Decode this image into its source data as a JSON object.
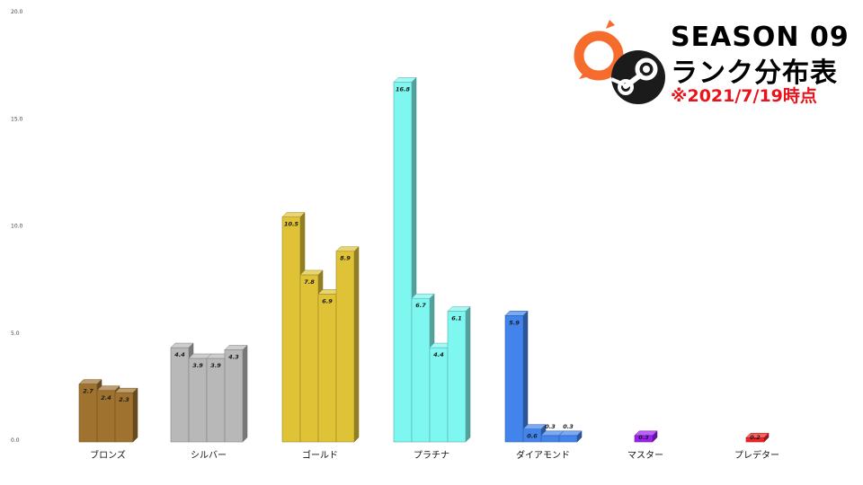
{
  "header": {
    "title_line1": "SEASON 09",
    "title_line2": "ランク分布表",
    "date_note": "※2021/7/19時点"
  },
  "logos": {
    "origin": {
      "icon": "origin-logo-icon",
      "color": "#f56c2d"
    },
    "steam": {
      "icon": "steam-logo-icon",
      "color": "#1b1b1b"
    }
  },
  "chart_data": {
    "type": "bar",
    "title": "",
    "xlabel": "",
    "ylabel": "",
    "ylim": [
      0,
      20
    ],
    "yticks": [
      "0.0",
      "5.0",
      "10.0",
      "15.0",
      "20.0"
    ],
    "grid": false,
    "style": "3d",
    "groups": [
      {
        "name": "ブロンズ",
        "color": "#a0722f",
        "values": [
          2.7,
          2.4,
          2.3
        ],
        "labels": [
          "2.7",
          "2.4",
          "2.3"
        ]
      },
      {
        "name": "シルバー",
        "color": "#b8b8b8",
        "values": [
          4.4,
          3.9,
          3.9,
          4.3
        ],
        "labels": [
          "4.4",
          "3.9",
          "3.9",
          "4.3"
        ]
      },
      {
        "name": "ゴールド",
        "color": "#dfc235",
        "values": [
          10.5,
          7.8,
          6.9,
          8.9
        ],
        "labels": [
          "10.5",
          "7.8",
          "6.9",
          "8.9"
        ]
      },
      {
        "name": "プラチナ",
        "color": "#7ef7f0",
        "values": [
          16.8,
          6.7,
          4.4,
          6.1
        ],
        "labels": [
          "16.8",
          "6.7",
          "4.4",
          "6.1"
        ]
      },
      {
        "name": "ダイアモンド",
        "color": "#4284ec",
        "values": [
          5.9,
          0.6,
          0.3,
          0.3
        ],
        "labels": [
          "5.9",
          "0.6",
          "0.3",
          "0.3"
        ]
      },
      {
        "name": "マスター",
        "color": "#9b1fef",
        "values": [
          0.3
        ],
        "labels": [
          "0.3"
        ]
      },
      {
        "name": "プレデター",
        "color": "#ef2424",
        "values": [
          0.2
        ],
        "labels": [
          "0.2"
        ]
      }
    ]
  }
}
